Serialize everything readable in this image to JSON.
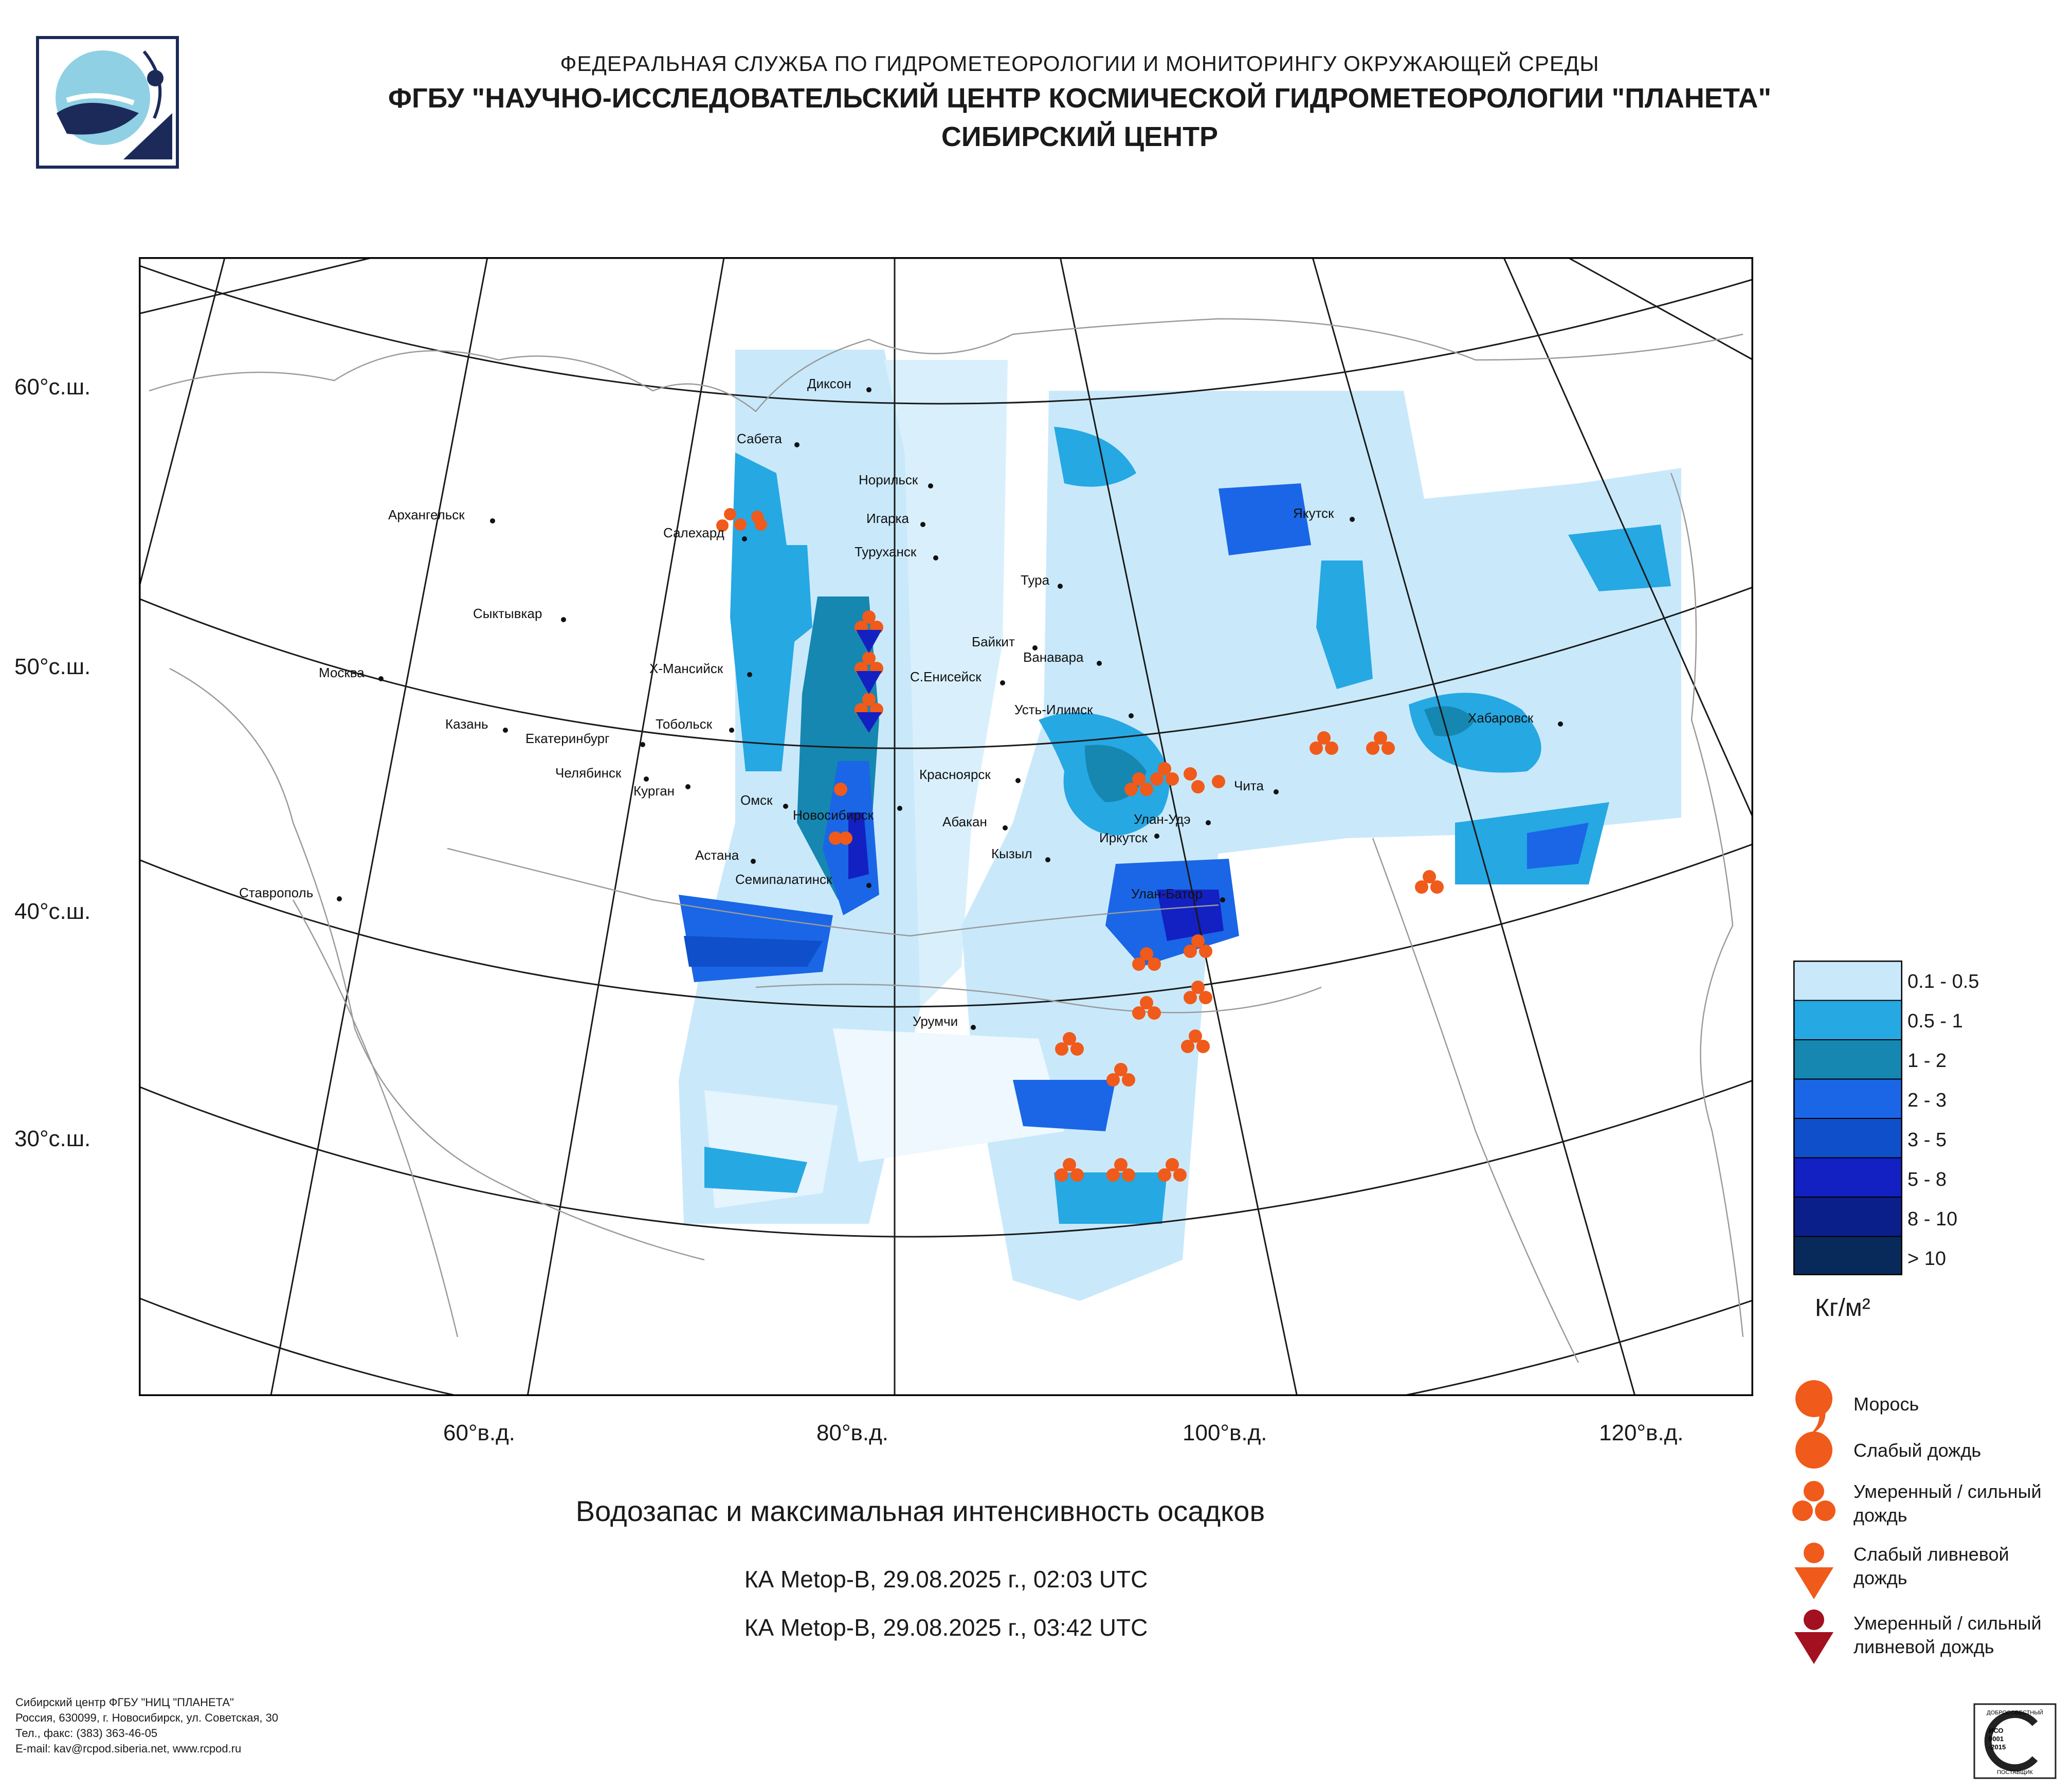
{
  "header": {
    "line1": "ФЕДЕРАЛЬНАЯ СЛУЖБА ПО ГИДРОМЕТЕОРОЛОГИИ И МОНИТОРИНГУ ОКРУЖАЮЩЕЙ СРЕДЫ",
    "line2": "ФГБУ \"НАУЧНО-ИССЛЕДОВАТЕЛЬСКИЙ ЦЕНТР КОСМИЧЕСКОЙ ГИДРОМЕТЕОРОЛОГИИ \"ПЛАНЕТА\"",
    "line3": "СИБИРСКИЙ ЦЕНТР"
  },
  "map": {
    "lat_labels": [
      "60°с.ш.",
      "50°с.ш.",
      "40°с.ш.",
      "30°с.ш."
    ],
    "lon_labels": [
      "60°в.д.",
      "80°в.д.",
      "100°в.д.",
      "120°в.д."
    ],
    "cities": [
      "Диксон",
      "Сабета",
      "Норильск",
      "Игарка",
      "Туруханск",
      "Салехард",
      "Архангельск",
      "Сыктывкар",
      "Москва",
      "Х-Мансийск",
      "Казань",
      "Тобольск",
      "Екатеринбург",
      "Челябинск",
      "Курган",
      "Омск",
      "Новосибирск",
      "Астана",
      "Семипалатинск",
      "Тура",
      "Байкит",
      "Ванавара",
      "С.Енисейск",
      "Усть-Илимск",
      "Красноярск",
      "Абакан",
      "Кызыл",
      "Иркутск",
      "Улан-Удэ",
      "Чита",
      "Улан-Батор",
      "Якутск",
      "Хабаровск",
      "Урумчи",
      "Ставрополь"
    ]
  },
  "legend": {
    "colors": [
      "#c9e9fb",
      "#26a8e3",
      "#1687b0",
      "#1a66e6",
      "#0f4fc9",
      "#1320c2",
      "#0b1f8a",
      "#082a5a"
    ],
    "ranges": [
      "0.1 - 0.5",
      "0.5 - 1",
      "1 - 2",
      "2 - 3",
      "3 - 5",
      "5 - 8",
      "8 - 10",
      "> 10"
    ],
    "unit": "Кг/м²",
    "symbols": [
      "Морось",
      "Слабый дождь",
      "Умеренный / сильный дождь",
      "Слабый ливневой дождь",
      "Умеренный / сильный ливневой дождь"
    ]
  },
  "title": "Водозапас и максимальная интенсивность осадков",
  "sat": [
    "КА Metop-B, 29.08.2025 г., 02:03 UTC",
    "КА Metop-B, 29.08.2025 г., 03:42 UTC"
  ],
  "footer": [
    "Сибирский центр ФГБУ \"НИЦ \"ПЛАНЕТА\"",
    "Россия, 630099, г. Новосибирск, ул. Советская, 30",
    "Тел., факс: (383) 363-46-05",
    "E-mail: kav@rcpod.siberia.net, www.rcpod.ru"
  ],
  "iso": {
    "top": "ДОБРОСОВЕСТНЫЙ",
    "mid": "ИСО 9001 -2015",
    "bottom": "ПОСТАВЩИК"
  }
}
